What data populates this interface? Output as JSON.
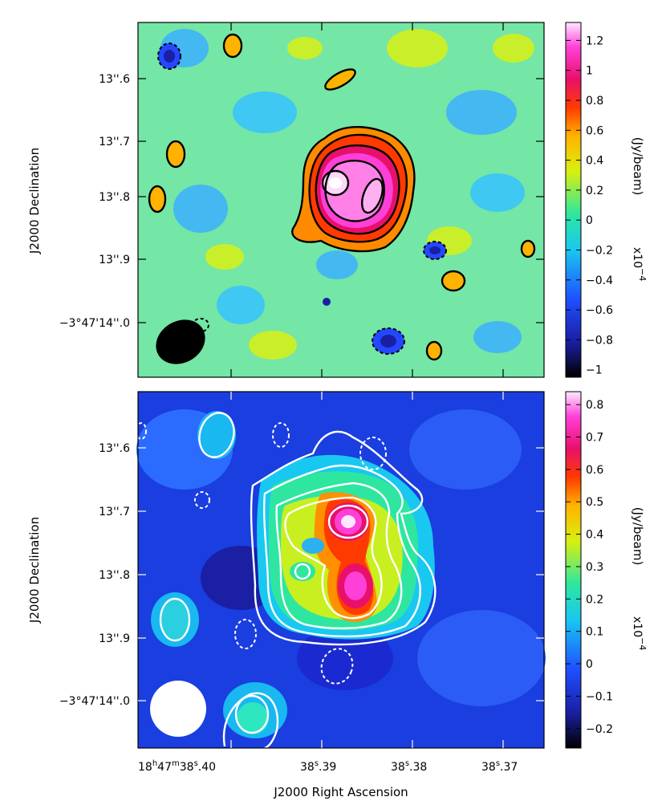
{
  "chart_data": [
    {
      "type": "heatmap",
      "panel": "top",
      "ylabel": "J2000 Declination",
      "yticks": [
        "13''.6",
        "13''.7",
        "13''.8",
        "13''.9",
        "−3°47'14''.0"
      ],
      "colorbar": {
        "label": "(Jy/beam)",
        "multiplier": "x10",
        "exponent": "−4",
        "range": [
          -1.05,
          1.32
        ],
        "ticks": [
          "1.2",
          "1",
          "0.8",
          "0.6",
          "0.4",
          "0.2",
          "0",
          "−0.2",
          "−0.4",
          "−0.6",
          "−0.8",
          "−1"
        ],
        "tick_values": [
          1.2,
          1.0,
          0.8,
          0.6,
          0.4,
          0.2,
          0,
          -0.2,
          -0.4,
          -0.6,
          -0.8,
          -1.0
        ],
        "colormap": [
          "#000000",
          "#1a1fa3",
          "#1f4fff",
          "#19c8f0",
          "#2ee6a0",
          "#d8f010",
          "#ffb300",
          "#ff3a00",
          "#e8106a",
          "#ff40d8",
          "#ffe8ff"
        ]
      },
      "background_color": "#74e6a6",
      "contour_color": "#000000",
      "beam_color": "#000000",
      "sources": [
        {
          "x": 0.75,
          "y": 0.65,
          "peak": 1.3,
          "size": 0.2
        },
        {
          "x": 0.55,
          "y": 0.62,
          "peak": 1.0,
          "size": 0.18
        },
        {
          "x": 0.6,
          "y": 0.78,
          "peak": 0.6,
          "size": 0.17
        }
      ]
    },
    {
      "type": "heatmap",
      "panel": "bottom",
      "xlabel": "J2000 Right Ascension",
      "ylabel": "J2000 Declination",
      "xticks": [
        "18h47m38s.40",
        "38s.39",
        "38s.38",
        "38s.37"
      ],
      "yticks": [
        "13''.6",
        "13''.7",
        "13''.8",
        "13''.9",
        "−3°47'14''.0"
      ],
      "colorbar": {
        "label": "(Jy/beam)",
        "multiplier": "x10",
        "exponent": "−4",
        "range": [
          -0.26,
          0.84
        ],
        "ticks": [
          "0.8",
          "0.7",
          "0.6",
          "0.5",
          "0.4",
          "0.3",
          "0.2",
          "0.1",
          "0",
          "−0.1",
          "−0.2"
        ],
        "tick_values": [
          0.8,
          0.7,
          0.6,
          0.5,
          0.4,
          0.3,
          0.2,
          0.1,
          0,
          -0.1,
          -0.2
        ],
        "colormap": [
          "#000000",
          "#1a1fa3",
          "#1f4fff",
          "#19c8f0",
          "#2ee6a0",
          "#d8f010",
          "#ffb300",
          "#ff3a00",
          "#e8106a",
          "#ff40d8",
          "#ffe8ff"
        ]
      },
      "background_color": "#1a3ee0",
      "contour_color": "#ffffff",
      "beam_color": "#ffffff",
      "sources": [
        {
          "x": 0.7,
          "y": 0.78,
          "peak": 0.78,
          "size": 0.16
        },
        {
          "x": 0.4,
          "y": 0.7,
          "peak": 0.62,
          "size": 0.16
        },
        {
          "x": 0.55,
          "y": 0.5,
          "peak": 0.35,
          "size": 0.24
        }
      ]
    }
  ]
}
